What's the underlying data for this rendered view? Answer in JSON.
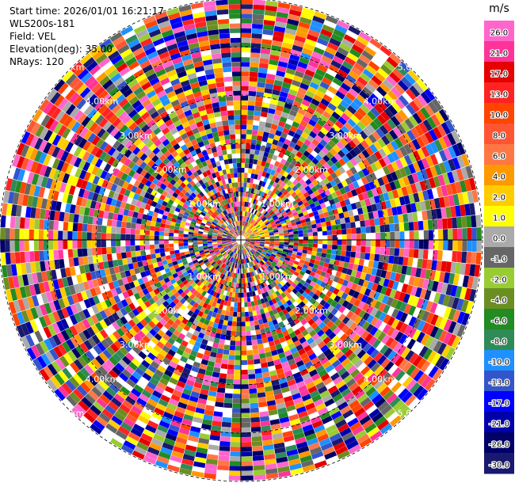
{
  "header": {
    "start_time": "Start time: 2026/01/01 16:21:17",
    "instrument": "WLS200s-181",
    "field": "Field: VEL",
    "elevation": "Elevation(deg): 35.00",
    "nrays": "NRays: 120"
  },
  "chart_data": {
    "type": "heatmap",
    "projection": "polar PPI",
    "n_rays": 120,
    "ring_labels": [
      "1.00km",
      "2.00km",
      "3.00km",
      "4.00km",
      "5.00km"
    ],
    "colorbar": {
      "unit": "m/s",
      "ticks": [
        "26.0",
        "21.0",
        "17.0",
        "13.0",
        "10.0",
        "8.0",
        "6.0",
        "4.0",
        "2.0",
        "1.0",
        "0.0",
        "-1.0",
        "-2.0",
        "-4.0",
        "-6.0",
        "-8.0",
        "-10.0",
        "-13.0",
        "-17.0",
        "-21.0",
        "-26.0",
        "-30.0"
      ],
      "colors": [
        "#ff66cc",
        "#ff3399",
        "#e60000",
        "#ff2222",
        "#ff4400",
        "#ff5533",
        "#ff7744",
        "#ff9900",
        "#ffcc00",
        "#ffff00",
        "#aaaaaa",
        "#666666",
        "#99cc33",
        "#6b8e23",
        "#228b22",
        "#2e8b57",
        "#1e90ff",
        "#3355cc",
        "#0000ff",
        "#0000aa",
        "#000066",
        "#191970"
      ]
    }
  }
}
